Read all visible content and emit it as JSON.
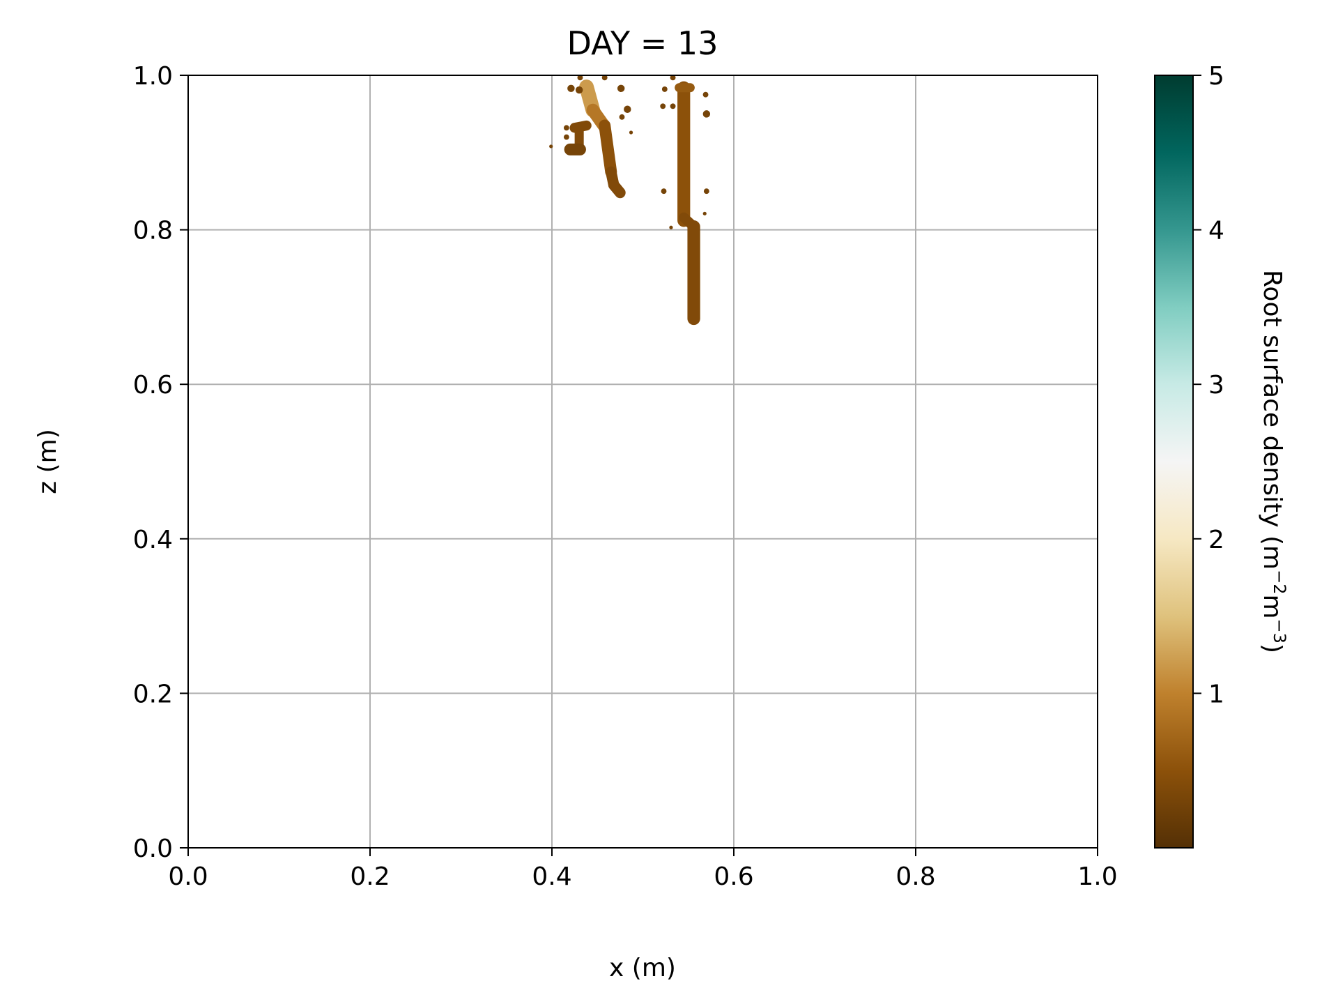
{
  "chart_data": {
    "type": "heatmap",
    "title": "DAY = 13",
    "xlabel": "x (m)",
    "ylabel": "z (m)",
    "xlim": [
      0.0,
      1.0
    ],
    "ylim": [
      0.0,
      1.0
    ],
    "grid": true,
    "xticks": [
      "0.0",
      "0.2",
      "0.4",
      "0.6",
      "0.8",
      "1.0"
    ],
    "xtick_values": [
      0.0,
      0.2,
      0.4,
      0.6,
      0.8,
      1.0
    ],
    "yticks": [
      "0.0",
      "0.2",
      "0.4",
      "0.6",
      "0.8",
      "1.0"
    ],
    "ytick_values": [
      0.0,
      0.2,
      0.4,
      0.6,
      0.8,
      1.0
    ],
    "colorbar": {
      "label": "Root surface density (m⁻²m⁻³)",
      "label_base": "Root surface density (m",
      "label_exp1": "−2",
      "label_mid": "m",
      "label_exp2": "−3",
      "label_end": ")",
      "range": [
        0.0,
        5.0
      ],
      "ticks": [
        "1",
        "2",
        "3",
        "4",
        "5"
      ],
      "tick_values": [
        1,
        2,
        3,
        4,
        5
      ],
      "colormap": "BrBG",
      "colors": [
        "#543005",
        "#8c510a",
        "#bf812d",
        "#dfc27d",
        "#f6e8c3",
        "#f5f5f5",
        "#c7eae5",
        "#80cdc1",
        "#35978f",
        "#01665e",
        "#003c30"
      ]
    },
    "root_segments": [
      {
        "x0": 0.438,
        "z0": 0.985,
        "x1": 0.445,
        "z1": 0.955,
        "width": 0.016,
        "value": 1.2
      },
      {
        "x0": 0.445,
        "z0": 0.955,
        "x1": 0.457,
        "z1": 0.935,
        "width": 0.014,
        "value": 0.9
      },
      {
        "x0": 0.458,
        "z0": 0.935,
        "x1": 0.465,
        "z1": 0.875,
        "width": 0.013,
        "value": 0.5
      },
      {
        "x0": 0.465,
        "z0": 0.875,
        "x1": 0.468,
        "z1": 0.858,
        "width": 0.012,
        "value": 0.4
      },
      {
        "x0": 0.468,
        "z0": 0.858,
        "x1": 0.475,
        "z1": 0.848,
        "width": 0.012,
        "value": 0.4
      },
      {
        "x0": 0.425,
        "z0": 0.932,
        "x1": 0.438,
        "z1": 0.935,
        "width": 0.011,
        "value": 0.4
      },
      {
        "x0": 0.43,
        "z0": 0.93,
        "x1": 0.43,
        "z1": 0.908,
        "width": 0.01,
        "value": 0.4
      },
      {
        "x0": 0.42,
        "z0": 0.904,
        "x1": 0.431,
        "z1": 0.904,
        "width": 0.013,
        "value": 0.3
      },
      {
        "x0": 0.545,
        "z0": 0.984,
        "x1": 0.545,
        "z1": 0.812,
        "width": 0.014,
        "value": 0.5
      },
      {
        "x0": 0.54,
        "z0": 0.984,
        "x1": 0.552,
        "z1": 0.984,
        "width": 0.01,
        "value": 0.6
      },
      {
        "x0": 0.545,
        "z0": 0.816,
        "x1": 0.556,
        "z1": 0.804,
        "width": 0.011,
        "value": 0.4
      },
      {
        "x0": 0.556,
        "z0": 0.804,
        "x1": 0.556,
        "z1": 0.685,
        "width": 0.014,
        "value": 0.4
      }
    ],
    "root_patches": [
      {
        "x": 0.421,
        "z": 0.983,
        "r": 0.004,
        "value": 0.3
      },
      {
        "x": 0.43,
        "z": 0.981,
        "r": 0.004,
        "value": 0.3
      },
      {
        "x": 0.431,
        "z": 0.997,
        "r": 0.003,
        "value": 0.3
      },
      {
        "x": 0.458,
        "z": 0.997,
        "r": 0.003,
        "value": 0.3
      },
      {
        "x": 0.476,
        "z": 0.983,
        "r": 0.004,
        "value": 0.3
      },
      {
        "x": 0.483,
        "z": 0.956,
        "r": 0.004,
        "value": 0.3
      },
      {
        "x": 0.416,
        "z": 0.932,
        "r": 0.003,
        "value": 0.3
      },
      {
        "x": 0.416,
        "z": 0.92,
        "r": 0.003,
        "value": 0.3
      },
      {
        "x": 0.477,
        "z": 0.946,
        "r": 0.003,
        "value": 0.3
      },
      {
        "x": 0.487,
        "z": 0.926,
        "r": 0.002,
        "value": 0.3
      },
      {
        "x": 0.399,
        "z": 0.908,
        "r": 0.002,
        "value": 0.3
      },
      {
        "x": 0.533,
        "z": 0.997,
        "r": 0.003,
        "value": 0.3
      },
      {
        "x": 0.524,
        "z": 0.982,
        "r": 0.003,
        "value": 0.3
      },
      {
        "x": 0.522,
        "z": 0.96,
        "r": 0.003,
        "value": 0.3
      },
      {
        "x": 0.569,
        "z": 0.975,
        "r": 0.003,
        "value": 0.3
      },
      {
        "x": 0.57,
        "z": 0.95,
        "r": 0.004,
        "value": 0.3
      },
      {
        "x": 0.533,
        "z": 0.96,
        "r": 0.003,
        "value": 0.3
      },
      {
        "x": 0.523,
        "z": 0.85,
        "r": 0.003,
        "value": 0.3
      },
      {
        "x": 0.57,
        "z": 0.85,
        "r": 0.003,
        "value": 0.3
      },
      {
        "x": 0.568,
        "z": 0.821,
        "r": 0.002,
        "value": 0.3
      },
      {
        "x": 0.531,
        "z": 0.803,
        "r": 0.002,
        "value": 0.3
      }
    ]
  }
}
